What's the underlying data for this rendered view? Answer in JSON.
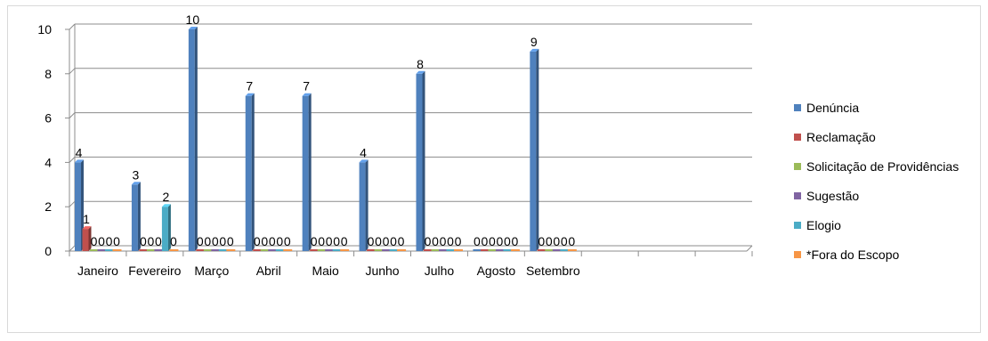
{
  "chart_data": {
    "type": "bar",
    "categories": [
      "Janeiro",
      "Fevereiro",
      "Março",
      "Abril",
      "Maio",
      "Junho",
      "Julho",
      "Agosto",
      "Setembro",
      "",
      "",
      ""
    ],
    "series": [
      {
        "name": "Denúncia",
        "color": "#4f81bd",
        "values": [
          4,
          3,
          10,
          7,
          7,
          4,
          8,
          0,
          9,
          null,
          null,
          null
        ]
      },
      {
        "name": "Reclamação",
        "color": "#c0504d",
        "values": [
          1,
          0,
          0,
          0,
          0,
          0,
          0,
          0,
          0,
          null,
          null,
          null
        ]
      },
      {
        "name": "Solicitação de Providências",
        "color": "#9bbb59",
        "values": [
          0,
          0,
          0,
          0,
          0,
          0,
          0,
          0,
          0,
          null,
          null,
          null
        ]
      },
      {
        "name": "Sugestão",
        "color": "#8064a2",
        "values": [
          0,
          0,
          0,
          0,
          0,
          0,
          0,
          0,
          0,
          null,
          null,
          null
        ]
      },
      {
        "name": "Elogio",
        "color": "#4bacc6",
        "values": [
          0,
          2,
          0,
          0,
          0,
          0,
          0,
          0,
          0,
          null,
          null,
          null
        ]
      },
      {
        "name": "*Fora do Escopo",
        "color": "#f79646",
        "values": [
          0,
          0,
          0,
          0,
          0,
          0,
          0,
          0,
          0,
          null,
          null,
          null
        ]
      }
    ],
    "yticks": [
      "0",
      "2",
      "4",
      "6",
      "8",
      "10"
    ],
    "ylim": [
      0,
      10
    ],
    "grid": true,
    "legend_position": "right"
  }
}
